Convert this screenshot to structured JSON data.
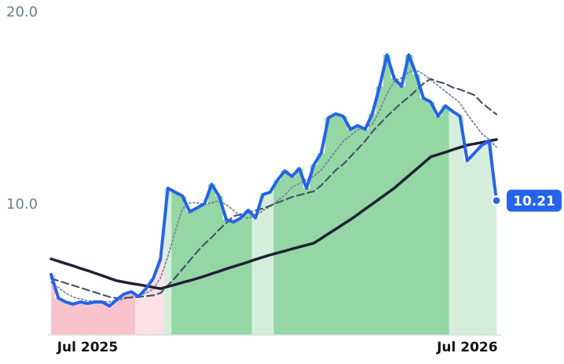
{
  "chart_data": {
    "type": "line",
    "categories": [
      null,
      null,
      null,
      null,
      null,
      "Jul 2025",
      null,
      null,
      null,
      null,
      null,
      null,
      null,
      null,
      null,
      null,
      null,
      null,
      null,
      null,
      null,
      null,
      null,
      null,
      null,
      null,
      null,
      null,
      null,
      null,
      null,
      null,
      null,
      null,
      null,
      null,
      null,
      null,
      null,
      null,
      null,
      null,
      null,
      null,
      null,
      null,
      null,
      null,
      null,
      null,
      null,
      null,
      null,
      null,
      null,
      null,
      null,
      "Jul 2026",
      null,
      null,
      null,
      null
    ],
    "series": [
      {
        "color": "#2563eb",
        "style": "solid",
        "width": 4,
        "values": [
          6.37,
          5.14,
          4.94,
          4.82,
          4.94,
          4.86,
          4.94,
          4.94,
          4.73,
          5.06,
          5.35,
          5.47,
          5.22,
          5.63,
          6.16,
          7.18,
          10.86,
          10.65,
          10.45,
          9.63,
          9.84,
          10.04,
          11.06,
          10.45,
          9.22,
          9.1,
          9.31,
          9.71,
          9.31,
          10.53,
          10.65,
          11.27,
          11.76,
          11.47,
          11.88,
          10.86,
          12.08,
          12.69,
          14.53,
          14.73,
          14.61,
          13.92,
          14.12,
          13.92,
          14.73,
          16.16,
          17.8,
          16.57,
          16.16,
          17.8,
          16.78,
          15.55,
          15.35,
          14.61,
          15.14,
          14.86,
          14.61,
          12.29,
          12.69,
          13.1,
          13.31,
          10.21
        ]
      },
      {
        "color": "#1e2235",
        "style": "solid",
        "width": 3.5,
        "values": [
          7.18,
          7.06,
          6.94,
          6.82,
          6.69,
          6.57,
          6.44,
          6.31,
          6.17,
          6.04,
          5.97,
          5.9,
          5.84,
          5.77,
          5.7,
          5.63,
          5.74,
          5.84,
          5.95,
          6.05,
          6.16,
          6.28,
          6.41,
          6.53,
          6.66,
          6.78,
          6.9,
          7.02,
          7.15,
          7.27,
          7.39,
          7.49,
          7.59,
          7.7,
          7.8,
          7.9,
          8.0,
          8.24,
          8.49,
          8.73,
          8.98,
          9.22,
          9.49,
          9.77,
          10.04,
          10.31,
          10.59,
          10.86,
          11.19,
          11.51,
          11.84,
          12.16,
          12.49,
          12.61,
          12.73,
          12.86,
          12.98,
          13.1,
          13.17,
          13.24,
          13.32,
          13.39
        ]
      },
      {
        "color": "#475569",
        "style": "dashed",
        "width": 2.2,
        "values": [
          6.16,
          6.04,
          5.92,
          5.8,
          5.68,
          5.56,
          5.44,
          5.32,
          5.2,
          5.14,
          5.15,
          5.17,
          5.2,
          5.24,
          5.28,
          5.4,
          5.8,
          6.2,
          6.65,
          7.1,
          7.55,
          7.95,
          8.3,
          8.7,
          9.05,
          9.4,
          9.5,
          9.6,
          9.7,
          9.8,
          9.95,
          10.1,
          10.25,
          10.4,
          10.5,
          10.6,
          10.7,
          11.0,
          11.4,
          11.8,
          12.1,
          12.5,
          12.9,
          13.3,
          13.8,
          14.2,
          14.6,
          14.95,
          15.3,
          15.6,
          15.95,
          16.3,
          16.55,
          16.4,
          16.3,
          16.1,
          16.0,
          15.85,
          15.7,
          15.3,
          15.0,
          14.7
        ]
      },
      {
        "color": "#7b8794",
        "style": "dotted",
        "width": 1.8,
        "values": [
          5.96,
          5.7,
          5.4,
          5.2,
          5.1,
          5.0,
          4.98,
          4.96,
          4.95,
          5.0,
          5.1,
          5.2,
          5.3,
          5.4,
          5.6,
          6.2,
          7.3,
          8.6,
          9.8,
          10.1,
          10.1,
          10.0,
          10.1,
          10.2,
          10.0,
          9.7,
          9.4,
          9.3,
          9.4,
          9.7,
          9.9,
          10.2,
          10.5,
          10.9,
          11.1,
          11.3,
          11.5,
          11.8,
          12.3,
          12.8,
          13.3,
          13.6,
          13.9,
          14.0,
          14.2,
          14.9,
          15.8,
          16.4,
          16.6,
          16.9,
          17.0,
          16.8,
          16.5,
          16.2,
          15.9,
          15.6,
          15.3,
          14.7,
          14.2,
          13.7,
          13.4,
          13.0
        ]
      }
    ],
    "bar_colors": [
      "#f9c3ce",
      "#f9c3ce",
      "#f9c3ce",
      "#f9c3ce",
      "#f9c3ce",
      "#f9c3ce",
      "#f9c3ce",
      "#f9c3ce",
      "#f9c3ce",
      "#f9c3ce",
      "#f9c3ce",
      "#f9c3ce",
      "#fde1e6",
      "#fde1e6",
      "#fde1e6",
      "#fde1e6",
      "#d5eedb",
      "#94d6a4",
      "#94d6a4",
      "#94d6a4",
      "#94d6a4",
      "#94d6a4",
      "#94d6a4",
      "#94d6a4",
      "#94d6a4",
      "#94d6a4",
      "#94d6a4",
      "#94d6a4",
      "#d5eedb",
      "#d5eedb",
      "#d5eedb",
      "#94d6a4",
      "#94d6a4",
      "#94d6a4",
      "#94d6a4",
      "#94d6a4",
      "#94d6a4",
      "#94d6a4",
      "#94d6a4",
      "#94d6a4",
      "#94d6a4",
      "#94d6a4",
      "#94d6a4",
      "#94d6a4",
      "#94d6a4",
      "#94d6a4",
      "#94d6a4",
      "#94d6a4",
      "#94d6a4",
      "#94d6a4",
      "#94d6a4",
      "#94d6a4",
      "#94d6a4",
      "#94d6a4",
      "#94d6a4",
      "#d5eedb",
      "#d5eedb",
      "#d5eedb",
      "#d5eedb",
      "#d5eedb",
      "#d5eedb",
      "#d5eedb"
    ],
    "ylim": [
      3.22,
      20.0
    ],
    "yticks": [
      {
        "value": 10,
        "label": "10.0"
      },
      {
        "value": 20,
        "label": "20.0"
      }
    ]
  }
}
